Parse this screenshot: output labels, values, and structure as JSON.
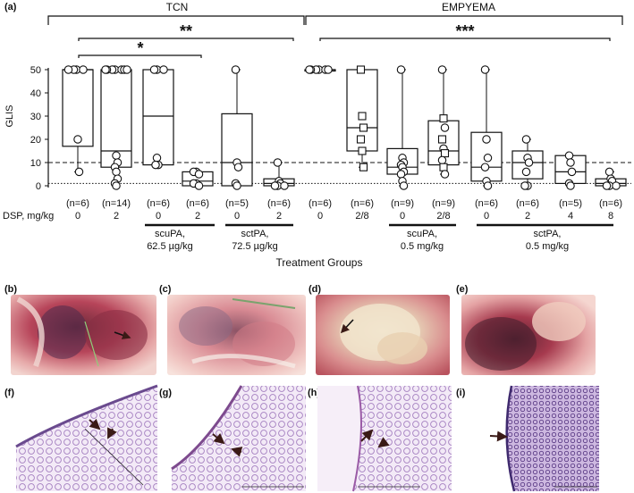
{
  "panel_a": {
    "label": "(a)",
    "group_titles": [
      "TCN",
      "EMPYEMA"
    ],
    "significance": [
      "**",
      "*",
      "***"
    ],
    "y_label": "GLIS",
    "x_label": "Treatment Groups",
    "dsp_label": "DSP, mg/kg",
    "treatment_labels": [
      {
        "line1": "scuPA,",
        "line2": "62.5 µg/kg"
      },
      {
        "line1": "sctPA,",
        "line2": "72.5 µg/kg"
      },
      {
        "line1": "scuPA,",
        "line2": "0.5 mg/kg"
      },
      {
        "line1": "sctPA,",
        "line2": "0.5 mg/kg"
      }
    ]
  },
  "photo_labels": [
    "(b)",
    "(c)",
    "(d)",
    "(e)"
  ],
  "histo_labels": [
    "(f)",
    "(g)",
    "(h)",
    "(i)"
  ],
  "colors": {
    "ink": "#111111",
    "tissue": "#d88a8c",
    "histo": "#b79ac9"
  },
  "chart_data": {
    "type": "box",
    "ylim": [
      0,
      50
    ],
    "yticks": [
      0,
      10,
      20,
      30,
      40,
      50
    ],
    "reference_lines": [
      {
        "y": 10,
        "style": "dashed"
      },
      {
        "y": 1,
        "style": "dotted"
      }
    ],
    "groups": [
      {
        "n": "(n=6)",
        "dsp": "0",
        "marker": "circle",
        "q1": 17,
        "median": 50,
        "q3": 50,
        "min": 6,
        "max": 50,
        "points": [
          50,
          50,
          50,
          50,
          20,
          6
        ]
      },
      {
        "n": "(n=14)",
        "dsp": "2",
        "marker": "circle",
        "q1": 8,
        "median": 15,
        "q3": 50,
        "min": 0,
        "max": 50,
        "points": [
          50,
          50,
          50,
          50,
          50,
          50,
          50,
          13,
          10,
          8,
          6,
          3,
          1,
          0
        ]
      },
      {
        "n": "(n=6)",
        "dsp": "0",
        "marker": "circle",
        "q1": 9,
        "median": 30,
        "q3": 50,
        "min": 9,
        "max": 50,
        "points": [
          50,
          50,
          50,
          12,
          9,
          9
        ]
      },
      {
        "n": "(n=6)",
        "dsp": "2",
        "marker": "circle",
        "q1": 0,
        "median": 2,
        "q3": 6,
        "min": 0,
        "max": 6,
        "points": [
          6,
          6,
          5,
          1,
          1,
          0
        ]
      },
      {
        "n": "(n=5)",
        "dsp": "0",
        "marker": "circle",
        "q1": 0,
        "median": 10,
        "q3": 31,
        "min": 0,
        "max": 50,
        "points": [
          50,
          10,
          8,
          1,
          0
        ]
      },
      {
        "n": "(n=6)",
        "dsp": "2",
        "marker": "circle",
        "q1": 0,
        "median": 1,
        "q3": 3,
        "min": 0,
        "max": 10,
        "points": [
          10,
          2,
          1,
          0,
          0,
          0
        ]
      },
      {
        "n": "(n=6)",
        "dsp": "0",
        "marker": "circle",
        "q1": 50,
        "median": 50,
        "q3": 50,
        "min": 50,
        "max": 50,
        "points": [
          50,
          50,
          50,
          50,
          50,
          50
        ]
      },
      {
        "n": "(n=6)",
        "dsp": "2/8",
        "marker": "square",
        "q1": 15,
        "median": 25,
        "q3": 50,
        "min": 8,
        "max": 50,
        "points": [
          50,
          30,
          25,
          20,
          15,
          8
        ]
      },
      {
        "n": "(n=9)",
        "dsp": "0",
        "marker": "circle",
        "q1": 5,
        "median": 8,
        "q3": 16,
        "min": 0,
        "max": 50,
        "points": [
          50,
          12,
          10,
          9,
          8,
          6,
          5,
          2,
          0
        ]
      },
      {
        "n": "(n=9)",
        "dsp": "2/8",
        "marker": "mixed",
        "q1": 9,
        "median": 15,
        "q3": 28,
        "min": 5,
        "max": 50,
        "points": [
          50,
          29,
          25,
          20,
          16,
          14,
          11,
          8,
          5
        ]
      },
      {
        "n": "(n=6)",
        "dsp": "0",
        "marker": "circle",
        "q1": 2,
        "median": 8,
        "q3": 23,
        "min": 0,
        "max": 50,
        "points": [
          50,
          20,
          12,
          8,
          2,
          0
        ]
      },
      {
        "n": "(n=6)",
        "dsp": "2",
        "marker": "circle",
        "q1": 3,
        "median": 10,
        "q3": 15,
        "min": 0,
        "max": 20,
        "points": [
          20,
          12,
          10,
          6,
          0,
          0
        ]
      },
      {
        "n": "(n=5)",
        "dsp": "4",
        "marker": "circle",
        "q1": 1,
        "median": 6,
        "q3": 13,
        "min": 0,
        "max": 13,
        "points": [
          13,
          10,
          6,
          1,
          0
        ]
      },
      {
        "n": "(n=6)",
        "dsp": "8",
        "marker": "circle",
        "q1": 0,
        "median": 1,
        "q3": 3,
        "min": 0,
        "max": 6,
        "points": [
          6,
          3,
          2,
          0,
          0,
          0
        ]
      }
    ]
  }
}
